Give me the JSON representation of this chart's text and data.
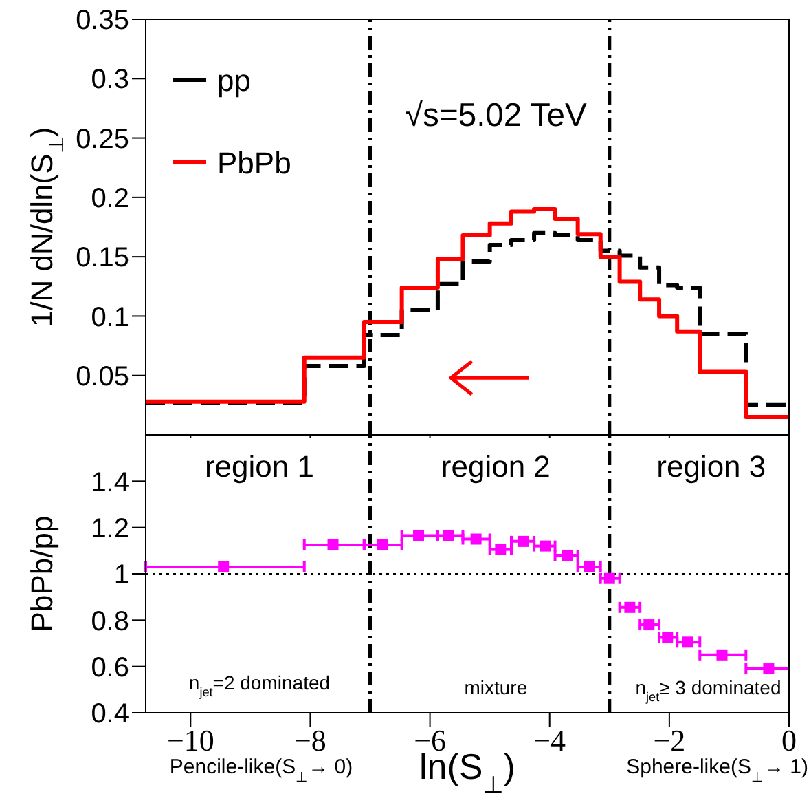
{
  "chart_data": [
    {
      "type": "histogram",
      "ylabel": "1/N dN/dln(S$_{⊥}$)",
      "bins": [
        -10.75,
        -8.1,
        -7.1,
        -6.47,
        -5.87,
        -5.45,
        -5.0,
        -4.64,
        -4.26,
        -3.91,
        -3.53,
        -3.15,
        -2.83,
        -2.49,
        -2.17,
        -1.87,
        -1.49,
        -0.72,
        0
      ],
      "series": [
        {
          "name": "pp",
          "color": "#000000",
          "line_style": "dashed",
          "values": [
            0.027,
            0.058,
            0.084,
            0.105,
            0.127,
            0.146,
            0.16,
            0.164,
            0.17,
            0.168,
            0.164,
            0.155,
            0.151,
            0.141,
            0.126,
            0.124,
            0.085,
            0.025
          ]
        },
        {
          "name": "PbPb",
          "color": "#ff0000",
          "line_style": "solid",
          "values": [
            0.028,
            0.065,
            0.095,
            0.124,
            0.148,
            0.168,
            0.178,
            0.188,
            0.19,
            0.182,
            0.169,
            0.15,
            0.129,
            0.114,
            0.1,
            0.087,
            0.053,
            0.015
          ]
        }
      ],
      "xlim": [
        -10.75,
        0
      ],
      "xticks": [
        -10,
        -8,
        -6,
        -4,
        -2,
        0
      ],
      "ylim": [
        0,
        0.35
      ],
      "yticks": [
        0.05,
        0.1,
        0.15,
        0.2,
        0.25,
        0.3,
        0.35
      ],
      "tick_labels": "y",
      "legend": "top left",
      "ref_lines": [
        {
          "axis": "x",
          "value": -7,
          "line_style": "dashed",
          "color": "#000000"
        },
        {
          "axis": "x",
          "value": -3,
          "line_style": "dashed",
          "color": "#000000"
        }
      ],
      "annotations": [
        "√s=5.02 TeV"
      ]
    },
    {
      "type": "scatter",
      "xlabel": "ln(S$_{⊥}$)",
      "ylabel": "PbPb/pp",
      "color": "#ff00ff",
      "marker": "square",
      "x": [
        -9.45,
        -7.62,
        -6.79,
        -6.19,
        -5.69,
        -5.23,
        -4.82,
        -4.44,
        -4.07,
        -3.7,
        -3.34,
        -3.0,
        -2.66,
        -2.34,
        -2.03,
        -1.7,
        -1.12,
        -0.34
      ],
      "values": [
        1.03,
        1.125,
        1.125,
        1.165,
        1.165,
        1.15,
        1.105,
        1.14,
        1.12,
        1.08,
        1.03,
        0.98,
        0.855,
        0.78,
        0.725,
        0.705,
        0.65,
        0.59
      ],
      "xerrors": [
        [
          -10.75,
          -8.1
        ],
        [
          -8.1,
          -7.1
        ],
        [
          -7.1,
          -6.47
        ],
        [
          -6.47,
          -5.87
        ],
        [
          -5.87,
          -5.45
        ],
        [
          -5.45,
          -5.0
        ],
        [
          -5.0,
          -4.64
        ],
        [
          -4.64,
          -4.26
        ],
        [
          -4.26,
          -3.91
        ],
        [
          -3.91,
          -3.53
        ],
        [
          -3.53,
          -3.15
        ],
        [
          -3.15,
          -2.83
        ],
        [
          -2.83,
          -2.49
        ],
        [
          -2.49,
          -2.17
        ],
        [
          -2.17,
          -1.87
        ],
        [
          -1.87,
          -1.49
        ],
        [
          -1.49,
          -0.72
        ],
        [
          -0.72,
          0
        ]
      ],
      "xlim": [
        -10.75,
        0
      ],
      "xticks": [
        -10,
        -8,
        -6,
        -4,
        -2,
        0
      ],
      "ylim": [
        0.4,
        1.6
      ],
      "yticks": [
        0.4,
        0.6,
        0.8,
        1,
        1.2,
        1.4
      ],
      "ref_lines": [
        {
          "axis": "x",
          "value": -7,
          "line_style": "dashed",
          "color": "#000000"
        },
        {
          "axis": "x",
          "value": -3,
          "line_style": "dashed",
          "color": "#000000"
        },
        {
          "axis": "y",
          "value": 1,
          "line_style": "dotted",
          "color": "#000000"
        }
      ],
      "annotations": [
        "region 1",
        "region 2",
        "region 3",
        "n$_{jet}$=2 dominated",
        "mixture",
        "n$_{jet}$≥ 3 dominated",
        "Pencile-like(S$_{⊥}$→ 0)",
        "Sphere-like(S$_{⊥}$→ 1)"
      ]
    }
  ]
}
